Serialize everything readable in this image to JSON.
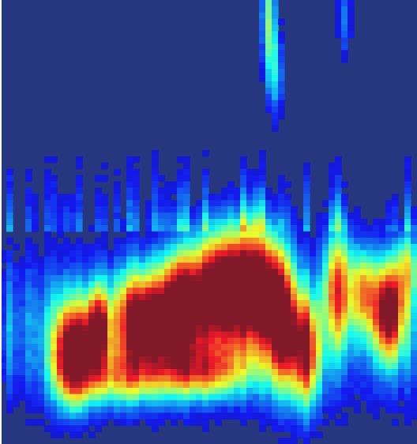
{
  "colors": {
    "colormap": "jet",
    "background": "#26367f"
  },
  "chart_data": {
    "type": "heatmap",
    "title": "",
    "xlabel": "",
    "ylabel": "",
    "grid": false,
    "legend": "none",
    "axes_visible": false,
    "x": [
      0,
      1,
      2,
      3,
      4,
      5,
      6,
      7,
      8,
      9,
      10,
      11,
      12,
      13,
      14,
      15,
      16,
      17,
      18,
      19,
      20,
      21,
      22,
      23,
      24,
      25,
      26,
      27,
      28,
      29,
      30,
      31,
      32,
      33,
      34,
      35,
      36,
      37,
      38,
      39,
      40,
      41,
      42,
      43,
      44,
      45,
      46,
      47,
      48,
      49,
      50,
      51,
      52,
      53,
      54,
      55,
      56,
      57,
      58,
      59,
      60,
      61,
      62,
      63,
      64,
      65
    ],
    "y": [
      0,
      1,
      2,
      3,
      4,
      5,
      6,
      7,
      8,
      9,
      10,
      11,
      12,
      13,
      14,
      15,
      16,
      17,
      18,
      19,
      20,
      21,
      22,
      23,
      24,
      25,
      26,
      27,
      28,
      29,
      30,
      31,
      32,
      33,
      34,
      35,
      36,
      37,
      38,
      39,
      40,
      41,
      42,
      43,
      44,
      45,
      46,
      47,
      48,
      49,
      50,
      51,
      52,
      53,
      54,
      55,
      56,
      57,
      58,
      59,
      60,
      61,
      62,
      63,
      64,
      65,
      66,
      67,
      68,
      69,
      70
    ],
    "intensity_model": {
      "value_range": [
        0,
        1
      ],
      "base_level": 0.02,
      "blobs": [
        {
          "x": 11,
          "y": 56,
          "sx": 2.2,
          "sy": 5.5,
          "a": 0.96
        },
        {
          "x": 15,
          "y": 52,
          "sx": 1.4,
          "sy": 4.5,
          "a": 0.72
        },
        {
          "x": 22,
          "y": 51,
          "sx": 3.0,
          "sy": 5.5,
          "a": 0.98
        },
        {
          "x": 28,
          "y": 49,
          "sx": 2.2,
          "sy": 6.0,
          "a": 0.93
        },
        {
          "x": 34,
          "y": 46,
          "sx": 3.0,
          "sy": 6.5,
          "a": 1.0
        },
        {
          "x": 40,
          "y": 45,
          "sx": 3.0,
          "sy": 6.5,
          "a": 1.0
        },
        {
          "x": 44,
          "y": 52,
          "sx": 1.8,
          "sy": 7.0,
          "a": 0.82
        },
        {
          "x": 48,
          "y": 56,
          "sx": 1.6,
          "sy": 6.0,
          "a": 0.78
        },
        {
          "x": 53,
          "y": 45,
          "sx": 1.6,
          "sy": 6.5,
          "a": 0.66
        },
        {
          "x": 57,
          "y": 46,
          "sx": 1.4,
          "sy": 4.5,
          "a": 0.52
        },
        {
          "x": 61,
          "y": 49,
          "sx": 1.8,
          "sy": 5.5,
          "a": 0.92
        },
        {
          "x": 64,
          "y": 42,
          "sx": 1.2,
          "sy": 4.0,
          "a": 0.42
        },
        {
          "x": 32,
          "y": 59,
          "sx": 5.0,
          "sy": 3.0,
          "a": 0.55
        },
        {
          "x": 18,
          "y": 60,
          "sx": 5.0,
          "sy": 3.0,
          "a": 0.45
        },
        {
          "x": 42,
          "y": 2,
          "sx": 0.8,
          "sy": 6.0,
          "a": 0.45
        },
        {
          "x": 43,
          "y": 11,
          "sx": 0.9,
          "sy": 5.0,
          "a": 0.32
        },
        {
          "x": 54,
          "y": 3,
          "sx": 0.8,
          "sy": 4.0,
          "a": 0.22
        }
      ],
      "band": {
        "y_center": 52,
        "y_sigma": 8.5,
        "floor": 0.26
      },
      "streaks": {
        "from_y": 20,
        "to_y": 36,
        "level": 0.2
      }
    }
  }
}
